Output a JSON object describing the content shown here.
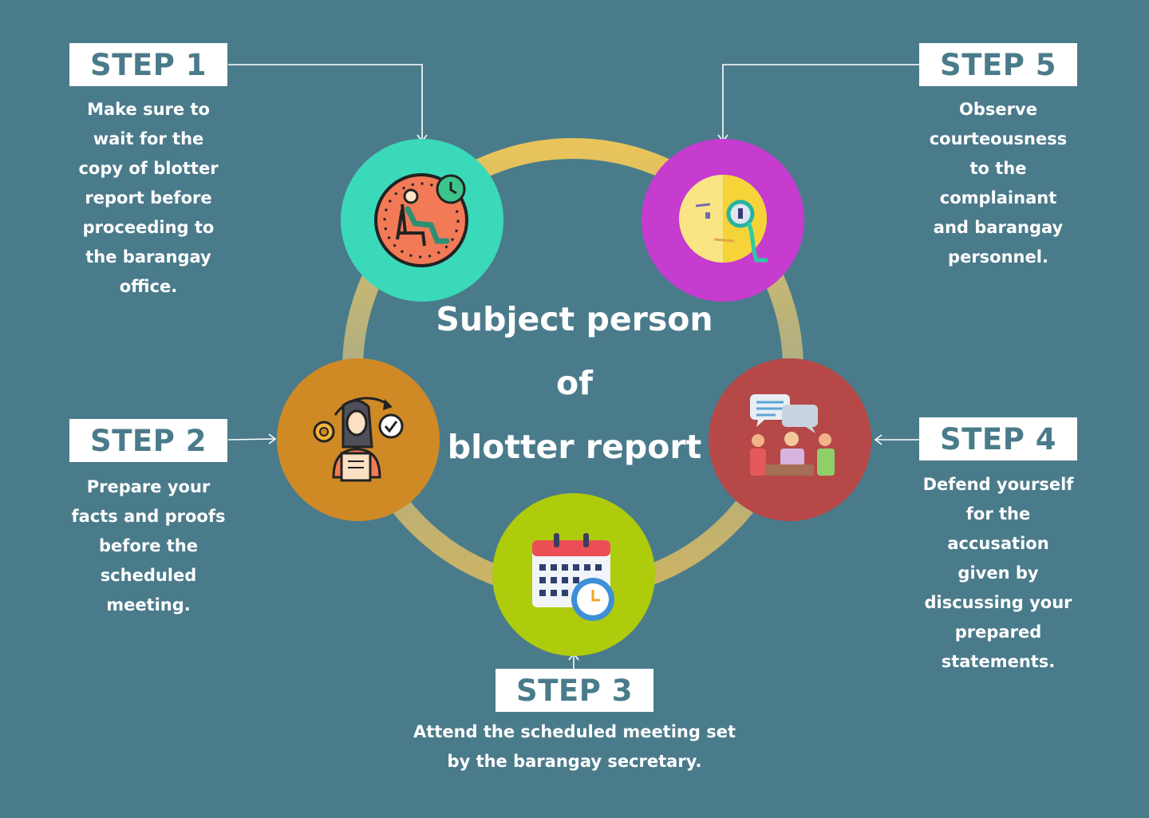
{
  "title_lines": [
    "Subject person",
    "of",
    "blotter report"
  ],
  "steps": [
    {
      "label": "STEP 1",
      "lines": [
        "Make sure to",
        "wait for the",
        "copy of blotter",
        "report before",
        "proceeding to",
        "the barangay",
        "office."
      ],
      "icon": "waiting-chair-clock-icon",
      "circle_color": "#3ad9b9"
    },
    {
      "label": "STEP 2",
      "lines": [
        "Prepare your",
        "facts and proofs",
        "before the",
        "scheduled",
        "meeting."
      ],
      "icon": "person-preparing-documents-icon",
      "circle_color": "#cf8a26"
    },
    {
      "label": "STEP 3",
      "lines": [
        "Attend the scheduled meeting set",
        "by the barangay secretary."
      ],
      "icon": "calendar-clock-icon",
      "circle_color": "#aecb0c"
    },
    {
      "label": "STEP 4",
      "lines": [
        "Defend yourself",
        "for the",
        "accusation",
        "given by",
        "discussing your",
        "prepared",
        "statements."
      ],
      "icon": "meeting-discussion-icon",
      "circle_color": "#b64848"
    },
    {
      "label": "STEP 5",
      "lines": [
        "Observe",
        "courteousness",
        "to the",
        "complainant",
        "and barangay",
        "personnel."
      ],
      "icon": "face-monocle-icon",
      "circle_color": "#c53ccf"
    }
  ],
  "colors": {
    "background": "#4a7b8b",
    "ring_top": "#e8c45a",
    "ring_bottom": "#a9aa86"
  }
}
